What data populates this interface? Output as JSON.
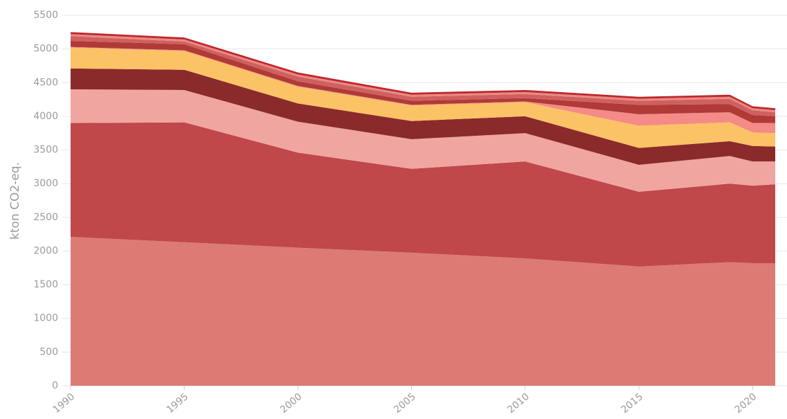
{
  "chart_data": {
    "type": "stacked_area",
    "y_label": "kton CO2-eq.",
    "x": [
      1990,
      1995,
      2000,
      2005,
      2010,
      2015,
      2019,
      2020,
      2021
    ],
    "series": [
      {
        "color": "#dc7b74",
        "values": [
          2210,
          2130,
          2050,
          1975,
          1890,
          1770,
          1835,
          1820,
          1820
        ]
      },
      {
        "color": "#c0474a",
        "values": [
          1690,
          1780,
          1410,
          1245,
          1440,
          1110,
          1165,
          1150,
          1170
        ]
      },
      {
        "color": "#f0a5a0",
        "values": [
          500,
          480,
          460,
          440,
          420,
          400,
          410,
          360,
          340
        ]
      },
      {
        "color": "#8b2a2b",
        "values": [
          310,
          300,
          270,
          270,
          250,
          250,
          220,
          230,
          220
        ]
      },
      {
        "color": "#fcc266",
        "values": [
          310,
          280,
          250,
          230,
          210,
          330,
          280,
          200,
          200
        ]
      },
      {
        "color": "#f48b87",
        "values": [
          10,
          10,
          10,
          10,
          10,
          170,
          150,
          140,
          150
        ]
      },
      {
        "color": "#b03a36",
        "values": [
          90,
          90,
          70,
          60,
          50,
          140,
          120,
          120,
          100
        ]
      },
      {
        "color": "#d06060",
        "values": [
          70,
          40,
          70,
          60,
          60,
          60,
          80,
          70,
          60
        ]
      },
      {
        "color": "#e88a80",
        "values": [
          30,
          30,
          30,
          30,
          30,
          30,
          30,
          30,
          30
        ]
      },
      {
        "color": "#c0272d",
        "values": [
          30,
          30,
          30,
          30,
          30,
          30,
          30,
          30,
          30
        ]
      }
    ],
    "xlim": [
      1990,
      2021
    ],
    "xticks": [
      1990,
      1995,
      2000,
      2005,
      2010,
      2015,
      2020
    ],
    "ylim": [
      0,
      5500
    ],
    "yticks": [
      0,
      500,
      1000,
      1500,
      2000,
      2500,
      3000,
      3500,
      4000,
      4500,
      5000,
      5500
    ],
    "grid": true
  }
}
